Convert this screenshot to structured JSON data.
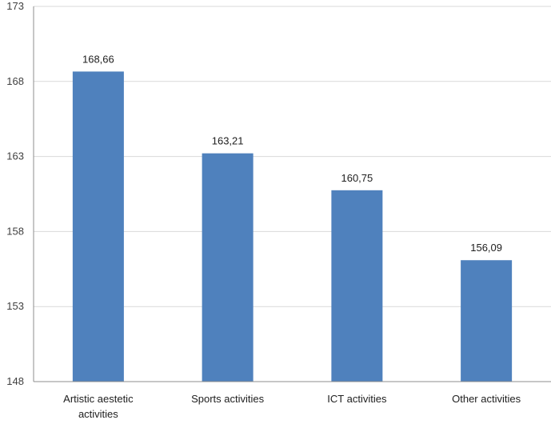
{
  "chart_data": {
    "type": "bar",
    "categories": [
      [
        "Artistic aestetic",
        "activities"
      ],
      [
        "Sports activities"
      ],
      [
        "ICT activities"
      ],
      [
        "Other activities"
      ]
    ],
    "values": [
      168.66,
      163.21,
      160.75,
      156.09
    ],
    "value_labels": [
      "168,66",
      "163,21",
      "160,75",
      "156,09"
    ],
    "ylim": [
      148,
      173
    ],
    "yticks": [
      148,
      153,
      158,
      163,
      168,
      173
    ],
    "grid": true,
    "bar_color": "#4f81bd",
    "title": "",
    "xlabel": "",
    "ylabel": ""
  }
}
